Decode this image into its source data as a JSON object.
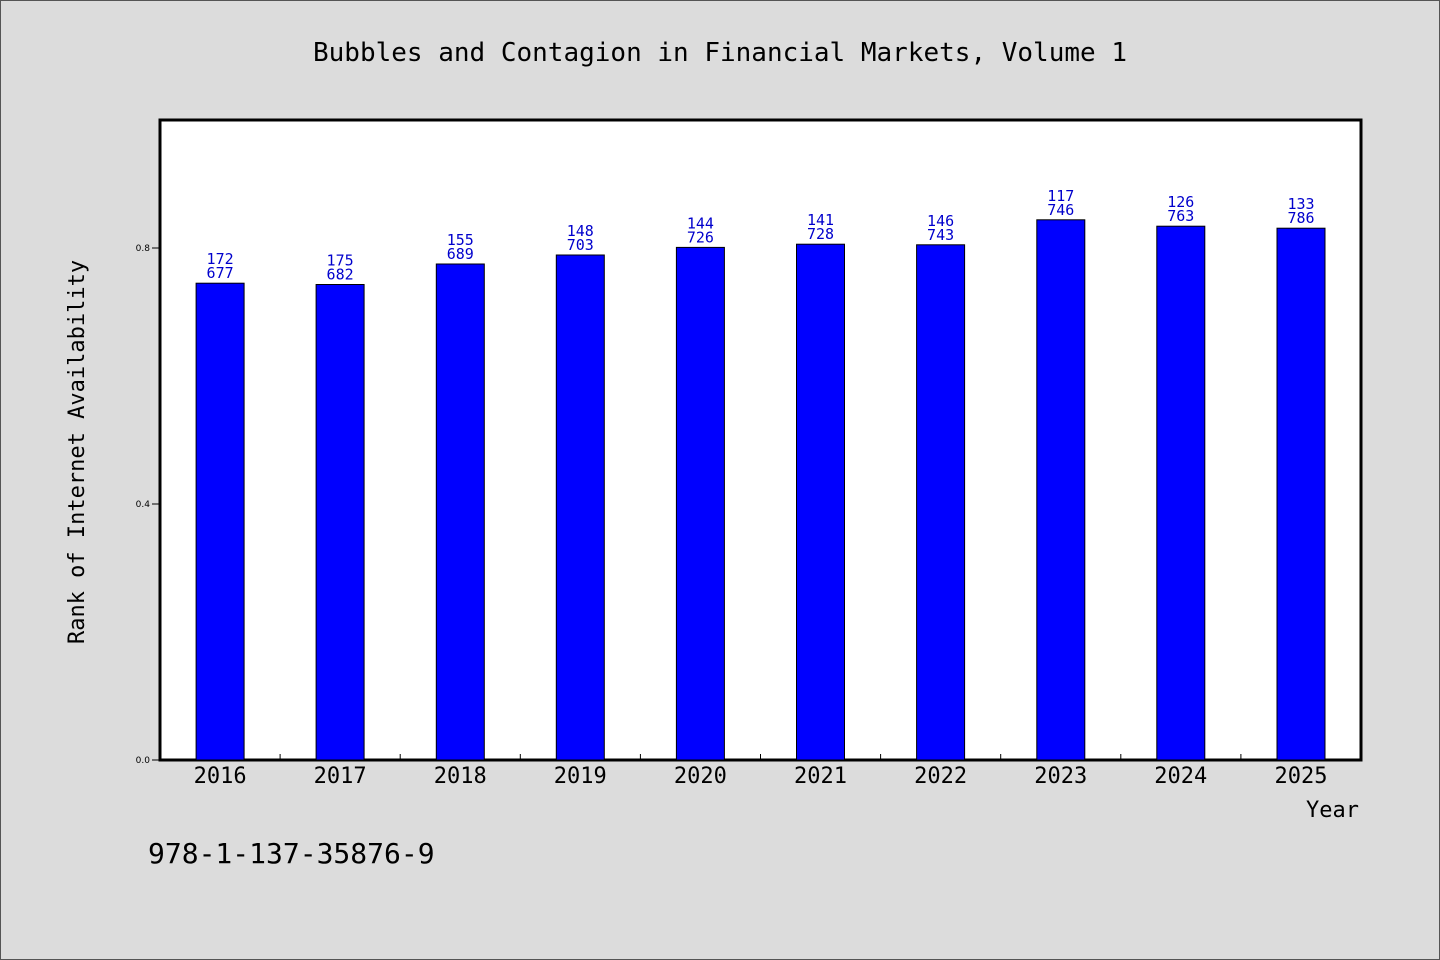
{
  "chart_data": {
    "type": "bar",
    "title": "Bubbles and Contagion in Financial Markets, Volume 1",
    "xlabel": "Year",
    "ylabel": "Rank of Internet Availability",
    "categories": [
      "2016",
      "2017",
      "2018",
      "2019",
      "2020",
      "2021",
      "2022",
      "2023",
      "2024",
      "2025"
    ],
    "values": [
      0.745,
      0.743,
      0.775,
      0.789,
      0.801,
      0.806,
      0.805,
      0.844,
      0.834,
      0.831
    ],
    "bar_labels_top": [
      "172",
      "175",
      "155",
      "148",
      "144",
      "141",
      "146",
      "117",
      "126",
      "133"
    ],
    "bar_labels_bottom": [
      "677",
      "682",
      "689",
      "703",
      "726",
      "728",
      "743",
      "746",
      "763",
      "786"
    ],
    "ylim": [
      0,
      1.0
    ],
    "yticks": [
      0.0,
      0.4,
      0.8
    ],
    "ytick_labels": [
      "0.0",
      "0.4",
      "0.8"
    ],
    "grid": false,
    "colors": {
      "bar": "#0000ff",
      "bar_edge": "#000000",
      "data_label": "#0000cc",
      "background": "#dcdcdc",
      "plot_background": "#ffffff"
    }
  },
  "footer": {
    "isbn": "978-1-137-35876-9"
  }
}
